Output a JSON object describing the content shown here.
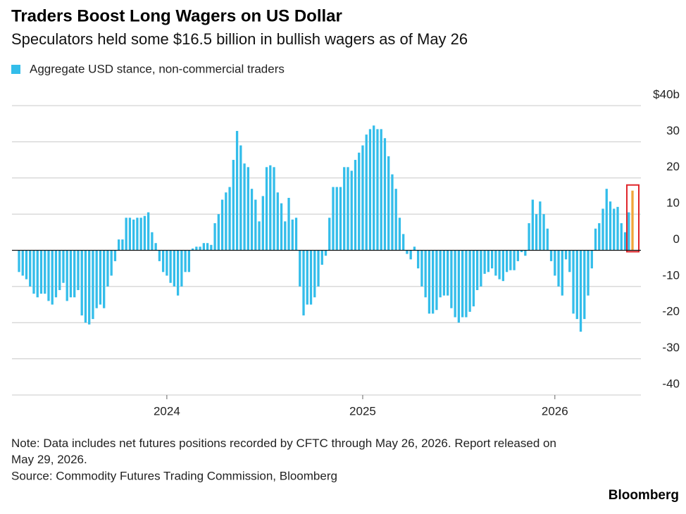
{
  "chart_data": {
    "type": "bar",
    "title": "Traders Boost Long Wagers on US Dollar",
    "subtitle": "Speculators held some $16.5 billion in bullish wagers as of May 26",
    "series": [
      {
        "name": "Aggregate USD stance, non-commercial traders",
        "color": "#33bdea",
        "values": [
          -6,
          -7,
          -8,
          -10,
          -12,
          -13,
          -12,
          -12,
          -14,
          -15,
          -13,
          -11,
          -9,
          -14,
          -13,
          -13,
          -11,
          -18,
          -20,
          -20.5,
          -19,
          -16,
          -15,
          -16,
          -10,
          -7,
          -3,
          3,
          3,
          9,
          9,
          8.5,
          9,
          9,
          9.5,
          10.5,
          5,
          2,
          -3,
          -6,
          -7,
          -9,
          -10,
          -12.5,
          -10,
          -6,
          -6,
          0.5,
          1,
          1,
          2,
          2,
          1.5,
          7.5,
          10,
          14,
          16,
          17.5,
          25,
          33,
          29,
          24,
          23,
          17,
          14,
          8,
          15,
          23,
          23.5,
          23,
          16,
          13,
          8,
          14.5,
          8.5,
          9,
          -10,
          -18,
          -15,
          -15,
          -13,
          -10,
          -4,
          -1.5,
          9,
          17.5,
          17.5,
          17.5,
          23,
          23,
          22,
          25,
          27,
          29,
          32,
          33.5,
          34.5,
          33.5,
          33.5,
          31,
          26,
          21,
          17,
          9,
          4.5,
          -1,
          -2.5,
          1,
          -5,
          -10,
          -13,
          -17.5,
          -17.5,
          -16.5,
          -13,
          -12.5,
          -12.5,
          -16,
          -18.5,
          -20,
          -18.5,
          -18.5,
          -17,
          -15.5,
          -11,
          -10,
          -6.5,
          -6,
          -5,
          -7,
          -8,
          -8.5,
          -6,
          -5.5,
          -5.5,
          -3,
          -0.5,
          -1.5,
          7.5,
          14,
          10,
          13.5,
          10,
          6,
          -3,
          -7,
          -10,
          -12.5,
          -2.5,
          -6,
          -17.5,
          -19,
          -22.5,
          -19,
          -12.5,
          -5,
          6,
          7.5,
          11.5,
          17,
          13.5,
          11.5,
          12,
          7.5,
          5,
          10.5,
          16.5
        ]
      }
    ],
    "categories": [
      null,
      null,
      null,
      null,
      null,
      null,
      null,
      null,
      null,
      null,
      null,
      null,
      null,
      null,
      null,
      null,
      null,
      null,
      null,
      null,
      null,
      null,
      null,
      null,
      null,
      null,
      null,
      null,
      null,
      null,
      null,
      null,
      null,
      null,
      null,
      null,
      null,
      null,
      null,
      null,
      "2024",
      null,
      null,
      null,
      null,
      null,
      null,
      null,
      null,
      null,
      null,
      null,
      null,
      null,
      null,
      null,
      null,
      null,
      null,
      null,
      null,
      null,
      null,
      null,
      null,
      null,
      null,
      null,
      null,
      null,
      null,
      null,
      null,
      null,
      null,
      null,
      null,
      null,
      null,
      null,
      null,
      null,
      null,
      null,
      null,
      null,
      null,
      null,
      null,
      null,
      null,
      null,
      null,
      "2025",
      null,
      null,
      null,
      null,
      null,
      null,
      null,
      null,
      null,
      null,
      null,
      null,
      null,
      null,
      null,
      null,
      null,
      null,
      null,
      null,
      null,
      null,
      null,
      null,
      null,
      null,
      null,
      null,
      null,
      null,
      null,
      null,
      null,
      null,
      null,
      null,
      null,
      null,
      null,
      null,
      null,
      null,
      null,
      null,
      null,
      null,
      null,
      null,
      null,
      null,
      null,
      "2026",
      null,
      null,
      null,
      null,
      null,
      null,
      null,
      null,
      null,
      null,
      null,
      null,
      null,
      null,
      null,
      null,
      null,
      null,
      null,
      null,
      null
    ],
    "highlight": {
      "index": 166,
      "color": "#f0a53a",
      "box_color": "#e0262b"
    },
    "ylim": [
      -40,
      40
    ],
    "yticks": [
      {
        "value": 40,
        "label": "$40b"
      },
      30,
      20,
      10,
      0,
      -10,
      -20,
      -30,
      -40
    ],
    "grid": true,
    "note": "Note: Data includes net futures positions recorded by CFTC through May 26, 2026. Report released on May 29, 2026.",
    "source": "Source: Commodity Futures Trading Commission, Bloomberg",
    "brand": "Bloomberg"
  }
}
